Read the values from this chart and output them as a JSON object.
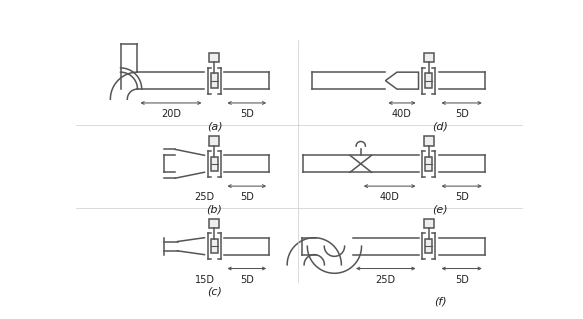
{
  "bg": "#ffffff",
  "lc": "#555555",
  "lw": 1.1,
  "ph": 11,
  "diagrams": [
    {
      "label": "(a)",
      "up": "20D",
      "dn": "5D",
      "type": "elbow",
      "col": 0,
      "row": 0
    },
    {
      "label": "(b)",
      "up": "25D",
      "dn": "5D",
      "type": "reducer",
      "col": 0,
      "row": 1
    },
    {
      "label": "(c)",
      "up": "15D",
      "dn": "5D",
      "type": "expander",
      "col": 0,
      "row": 2
    },
    {
      "label": "(d)",
      "up": "40D",
      "dn": "5D",
      "type": "valve",
      "col": 1,
      "row": 0
    },
    {
      "label": "(e)",
      "up": "40D",
      "dn": "5D",
      "type": "butterfly",
      "col": 1,
      "row": 1
    },
    {
      "label": "(f)",
      "up": "25D",
      "dn": "5D",
      "type": "sbend",
      "col": 1,
      "row": 2
    }
  ]
}
